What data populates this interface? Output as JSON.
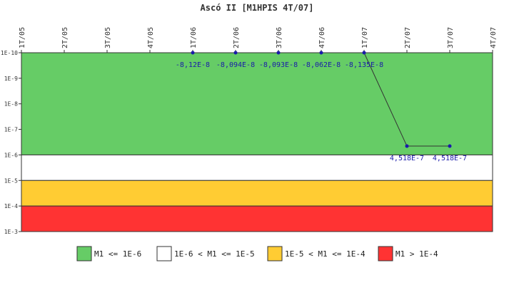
{
  "chart_data": {
    "type": "line",
    "title": "Ascó II [M1HPIS 4T/07]",
    "x_labels": [
      "1T/05",
      "2T/05",
      "3T/05",
      "4T/05",
      "1T/06",
      "2T/06",
      "3T/06",
      "4T/06",
      "1T/07",
      "2T/07",
      "3T/07",
      "4T/07"
    ],
    "y_scale": "log",
    "y_ticks": [
      "1E-10",
      "1E-9",
      "1E-8",
      "1E-7",
      "1E-6",
      "1E-5",
      "1E-4",
      "1E-3"
    ],
    "y_range": [
      "1E-10",
      "1E-3"
    ],
    "series": [
      {
        "points": [
          {
            "x": "1T/06",
            "y": 1e-10,
            "label": "-8,12E-8"
          },
          {
            "x": "2T/06",
            "y": 1e-10,
            "label": "-8,094E-8"
          },
          {
            "x": "3T/06",
            "y": 1e-10,
            "label": "-8,093E-8"
          },
          {
            "x": "4T/06",
            "y": 1e-10,
            "label": "-8,062E-8"
          },
          {
            "x": "1T/07",
            "y": 1e-10,
            "label": "-8,135E-8"
          },
          {
            "x": "2T/07",
            "y": 4.518e-07,
            "label": "4,518E-7"
          },
          {
            "x": "3T/07",
            "y": 4.518e-07,
            "label": "4,518E-7"
          }
        ],
        "color": "#1a1aaa"
      }
    ],
    "bands": [
      {
        "from": 1e-10,
        "to": 1e-06,
        "color": "#66cc66",
        "legend": "M1 <= 1E-6"
      },
      {
        "from": 1e-06,
        "to": 1e-05,
        "color": "#ffffff",
        "legend": "1E-6 < M1 <= 1E-5"
      },
      {
        "from": 1e-05,
        "to": 0.0001,
        "color": "#ffcc33",
        "legend": "1E-5 < M1 <= 1E-4"
      },
      {
        "from": 0.0001,
        "to": 0.001,
        "color": "#ff3333",
        "legend": "M1 > 1E-4"
      }
    ],
    "legend_position": "bottom"
  }
}
